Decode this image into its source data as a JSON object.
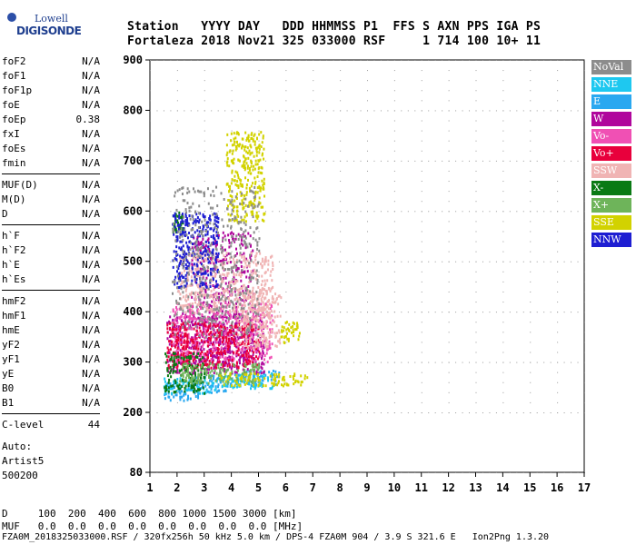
{
  "logo": {
    "top": "Lowell",
    "main": "DIGISONDE"
  },
  "header": {
    "line1": "Station   YYYY DAY   DDD HHMMSS P1  FFS S AXN PPS IGA PS",
    "line2": "Fortaleza 2018 Nov21 325 033000 RSF     1 714 100 10+ 11"
  },
  "params": {
    "group1": [
      {
        "name": "foF2",
        "value": "N/A"
      },
      {
        "name": "foF1",
        "value": "N/A"
      },
      {
        "name": "foF1p",
        "value": "N/A"
      },
      {
        "name": "foE",
        "value": "N/A"
      },
      {
        "name": "foEp",
        "value": "0.38"
      },
      {
        "name": "fxI",
        "value": "N/A"
      },
      {
        "name": "foEs",
        "value": "N/A"
      },
      {
        "name": "fmin",
        "value": "N/A"
      }
    ],
    "group2": [
      {
        "name": "MUF(D)",
        "value": "N/A"
      },
      {
        "name": "M(D)",
        "value": "N/A"
      },
      {
        "name": "D",
        "value": "N/A"
      }
    ],
    "group3": [
      {
        "name": "h`F",
        "value": "N/A"
      },
      {
        "name": "h`F2",
        "value": "N/A"
      },
      {
        "name": "h`E",
        "value": "N/A"
      },
      {
        "name": "h`Es",
        "value": "N/A"
      }
    ],
    "group4": [
      {
        "name": "hmF2",
        "value": "N/A"
      },
      {
        "name": "hmF1",
        "value": "N/A"
      },
      {
        "name": "hmE",
        "value": "N/A"
      },
      {
        "name": "yF2",
        "value": "N/A"
      },
      {
        "name": "yF1",
        "value": "N/A"
      },
      {
        "name": "yE",
        "value": "N/A"
      },
      {
        "name": "B0",
        "value": "N/A"
      },
      {
        "name": "B1",
        "value": "N/A"
      }
    ],
    "clevel": {
      "name": "C-level",
      "value": "44"
    }
  },
  "auto": {
    "line1": "Auto:",
    "line2": "Artist5",
    "line3": "500200"
  },
  "legend": [
    {
      "label": "NoVal",
      "color": "#8c8c8c"
    },
    {
      "label": "NNE",
      "color": "#1ec8f0"
    },
    {
      "label": "E",
      "color": "#2aa8f0"
    },
    {
      "label": "W",
      "color": "#b0069c"
    },
    {
      "label": "Vo-",
      "color": "#f050b4"
    },
    {
      "label": "Vo+",
      "color": "#e8003c"
    },
    {
      "label": "SSW",
      "color": "#f0b4b4"
    },
    {
      "label": "X-",
      "color": "#0a7a14"
    },
    {
      "label": "X+",
      "color": "#6eb45a"
    },
    {
      "label": "SSE",
      "color": "#d2d200"
    },
    {
      "label": "NNW",
      "color": "#1e1ed2"
    }
  ],
  "footer": {
    "d_line": "D     100  200  400  600  800 1000 1500 3000 [km]",
    "muf_line": "MUF   0.0  0.0  0.0  0.0  0.0  0.0  0.0  0.0 [MHz]",
    "file_line": "FZA0M_2018325033000.RSF / 320fx256h 50 kHz 5.0 km / DPS-4 FZA0M 904 / 3.9 S 321.6 E   Ion2Png 1.3.20"
  },
  "chart_data": {
    "type": "scatter",
    "x_ticks": [
      "1",
      "2",
      "3",
      "4",
      "5",
      "6",
      "7",
      "8",
      "9",
      "10",
      "11",
      "12",
      "13",
      "14",
      "15",
      "16",
      "17"
    ],
    "y_ticks": [
      "80",
      "200",
      "300",
      "400",
      "500",
      "600",
      "700",
      "800",
      "900"
    ],
    "xlim": [
      1,
      17
    ],
    "ylim": [
      80,
      900
    ],
    "series": [
      {
        "name": "E",
        "color": "#2aa8f0",
        "regions": [
          [
            1.5,
            2.8,
            225,
            260
          ],
          [
            2.5,
            4.0,
            240,
            275
          ],
          [
            4.0,
            5.8,
            255,
            285
          ]
        ]
      },
      {
        "name": "NNE",
        "color": "#1ec8f0",
        "regions": [
          [
            1.5,
            3.5,
            240,
            270
          ],
          [
            3.5,
            5.5,
            250,
            280
          ]
        ]
      },
      {
        "name": "W",
        "color": "#b0069c",
        "regions": [
          [
            1.6,
            5.2,
            280,
            400
          ],
          [
            2.5,
            4.8,
            300,
            560
          ]
        ]
      },
      {
        "name": "Vo-",
        "color": "#f050b4",
        "regions": [
          [
            1.8,
            5.5,
            300,
            420
          ]
        ]
      },
      {
        "name": "Vo+",
        "color": "#e8003c",
        "regions": [
          [
            1.6,
            5.0,
            290,
            380
          ]
        ]
      },
      {
        "name": "SSW",
        "color": "#f0b4b4",
        "regions": [
          [
            4.2,
            5.8,
            330,
            450
          ],
          [
            2.0,
            5.5,
            400,
            520
          ]
        ]
      },
      {
        "name": "X-",
        "color": "#0a7a14",
        "regions": [
          [
            1.5,
            3.0,
            240,
            320
          ],
          [
            1.8,
            2.2,
            560,
            600
          ]
        ]
      },
      {
        "name": "X+",
        "color": "#6eb45a",
        "regions": [
          [
            2.0,
            5.0,
            260,
            300
          ]
        ]
      },
      {
        "name": "SSE",
        "color": "#d2d200",
        "regions": [
          [
            3.5,
            6.8,
            255,
            280
          ],
          [
            3.8,
            5.2,
            580,
            760
          ],
          [
            5.8,
            6.5,
            340,
            385
          ]
        ]
      },
      {
        "name": "NNW",
        "color": "#1e1ed2",
        "regions": [
          [
            1.8,
            3.5,
            450,
            600
          ]
        ]
      },
      {
        "name": "NoVal",
        "color": "#8c8c8c",
        "regions": [
          [
            1.8,
            5.0,
            350,
            650
          ]
        ]
      }
    ]
  }
}
